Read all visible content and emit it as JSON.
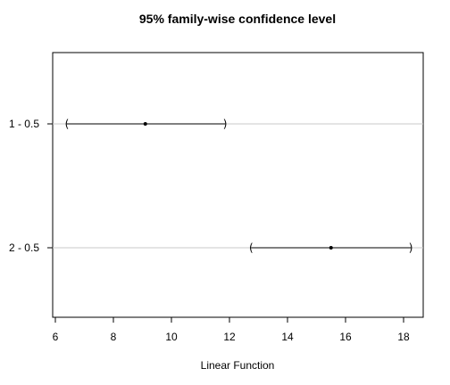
{
  "chart_data": {
    "type": "scatter",
    "title": "95% family-wise confidence level",
    "xlabel": "Linear Function",
    "ylabel": "",
    "xlim": [
      6,
      18.5
    ],
    "x_ticks": [
      6,
      8,
      10,
      12,
      14,
      16,
      18
    ],
    "x_tick_labels": [
      "6",
      "8",
      "10",
      "12",
      "14",
      "16",
      "18"
    ],
    "categories": [
      "1 - 0.5",
      "2 - 0.5"
    ],
    "estimates": [
      9.1,
      15.5
    ],
    "lower": [
      6.4,
      12.75
    ],
    "upper": [
      11.85,
      18.25
    ],
    "grid": "horizontal reference lines at each comparison",
    "legend": "none"
  }
}
